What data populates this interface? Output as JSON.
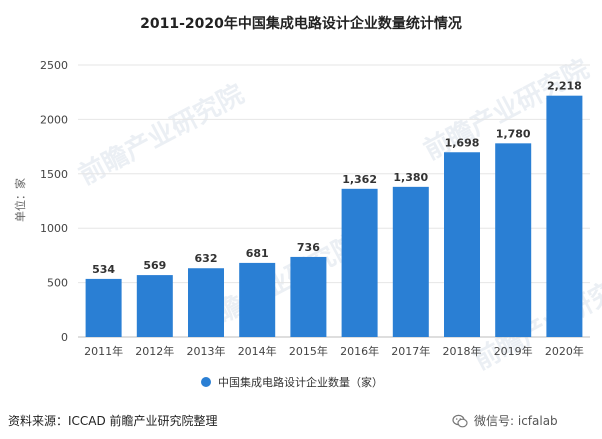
{
  "chart_data": {
    "type": "bar",
    "title": "2011-2020年中国集成电路设计企业数量统计情况",
    "categories": [
      "2011年",
      "2012年",
      "2013年",
      "2014年",
      "2015年",
      "2016年",
      "2017年",
      "2018年",
      "2019年",
      "2020年"
    ],
    "series": [
      {
        "name": "中国集成电路设计企业数量（家）",
        "values": [
          534,
          569,
          632,
          681,
          736,
          1362,
          1380,
          1698,
          1780,
          2218
        ],
        "labels": [
          "534",
          "569",
          "632",
          "681",
          "736",
          "1,362",
          "1,380",
          "1,698",
          "1,780",
          "2,218"
        ]
      }
    ],
    "ylabel": "单位：家",
    "ylim": [
      0,
      2500
    ],
    "yticks": [
      0,
      500,
      1000,
      1500,
      2000,
      2500
    ],
    "grid": true,
    "legend": "bottom",
    "bar_color": "#2a7fd4"
  },
  "footer": {
    "source": "资料来源：ICCAD 前瞻产业研究院整理",
    "wechat": "微信号: icfalab"
  },
  "watermark": {
    "text": "前瞻产业研究院"
  }
}
